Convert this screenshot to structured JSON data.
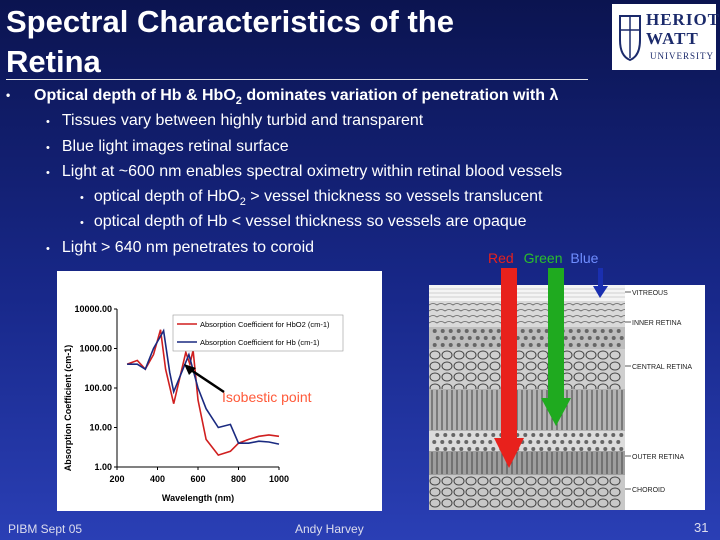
{
  "slide": {
    "title_line1": "Spectral Characteristics of the",
    "title_line2": "Retina",
    "logo": {
      "line1": "HERIOT",
      "line2": "WATT",
      "line3": "UNIVERSITY"
    },
    "bullet_main": "Optical depth of Hb & HbO",
    "bullet_main_sub": "2",
    "bullet_main_rest": " dominates variation of penetration with λ",
    "sub1": "Tissues vary between highly turbid and transparent",
    "sub2": "Blue light images retinal surface",
    "sub3": "Light at ~600 nm enables spectral oximetry within retinal blood vessels",
    "subsub1_a": "optical depth of HbO",
    "subsub1_sub": "2",
    "subsub1_b": " > vessel thickness so vessels translucent",
    "subsub2": "optical depth of Hb < vessel thickness so vessels are opaque",
    "sub4": "Light > 640 nm penetrates to coroid",
    "rgb": {
      "red": "Red",
      "green": "Green",
      "blue": "Blue"
    },
    "colors": {
      "red": "#e8211c",
      "green": "#1faa1f",
      "blue": "#1a2fb0"
    },
    "footer_left": "PIBM Sept 05",
    "footer_center": "Andy Harvey",
    "page_number": "31"
  },
  "chart_data": {
    "type": "line",
    "title": "",
    "xlabel": "Wavelength (nm)",
    "ylabel": "Absorption Coefficient (cm-1)",
    "xlim": [
      200,
      1000
    ],
    "ylim": [
      1,
      10000
    ],
    "yscale": "log",
    "x_ticks": [
      "200",
      "400",
      "600",
      "800",
      "1000"
    ],
    "y_ticks": [
      "1.00",
      "10.00",
      "100.00",
      "1000.00",
      "10000.00"
    ],
    "legend": [
      "Absorption Coefficient for HbO2 (cm-1)",
      "Absorption Coefficient for Hb  (cm-1)"
    ],
    "legend_position": "top-right",
    "annotation": "Isobestic point",
    "series": [
      {
        "name": "Absorption Coefficient for HbO2 (cm-1)",
        "color": "#d01f1f",
        "x": [
          250,
          300,
          340,
          380,
          415,
          440,
          480,
          540,
          560,
          576,
          600,
          640,
          700,
          760,
          800,
          850,
          900,
          950,
          1000
        ],
        "y": [
          400,
          500,
          300,
          700,
          3000,
          300,
          40,
          800,
          400,
          900,
          50,
          5,
          2,
          2.5,
          4,
          5,
          6,
          6.5,
          6
        ]
      },
      {
        "name": "Absorption Coefficient for Hb  (cm-1)",
        "color": "#1a2a80",
        "x": [
          250,
          300,
          340,
          380,
          430,
          460,
          480,
          555,
          600,
          640,
          700,
          760,
          800,
          850,
          900,
          950,
          1000
        ],
        "y": [
          400,
          400,
          300,
          1000,
          2800,
          250,
          80,
          700,
          100,
          30,
          10,
          12,
          4,
          4,
          4.5,
          4.3,
          3.8
        ]
      }
    ]
  },
  "retina_layers": [
    "VITREOUS",
    "INNER RETINA",
    "CENTRAL RETINA",
    "OUTER RETINA",
    "CHOROID"
  ]
}
